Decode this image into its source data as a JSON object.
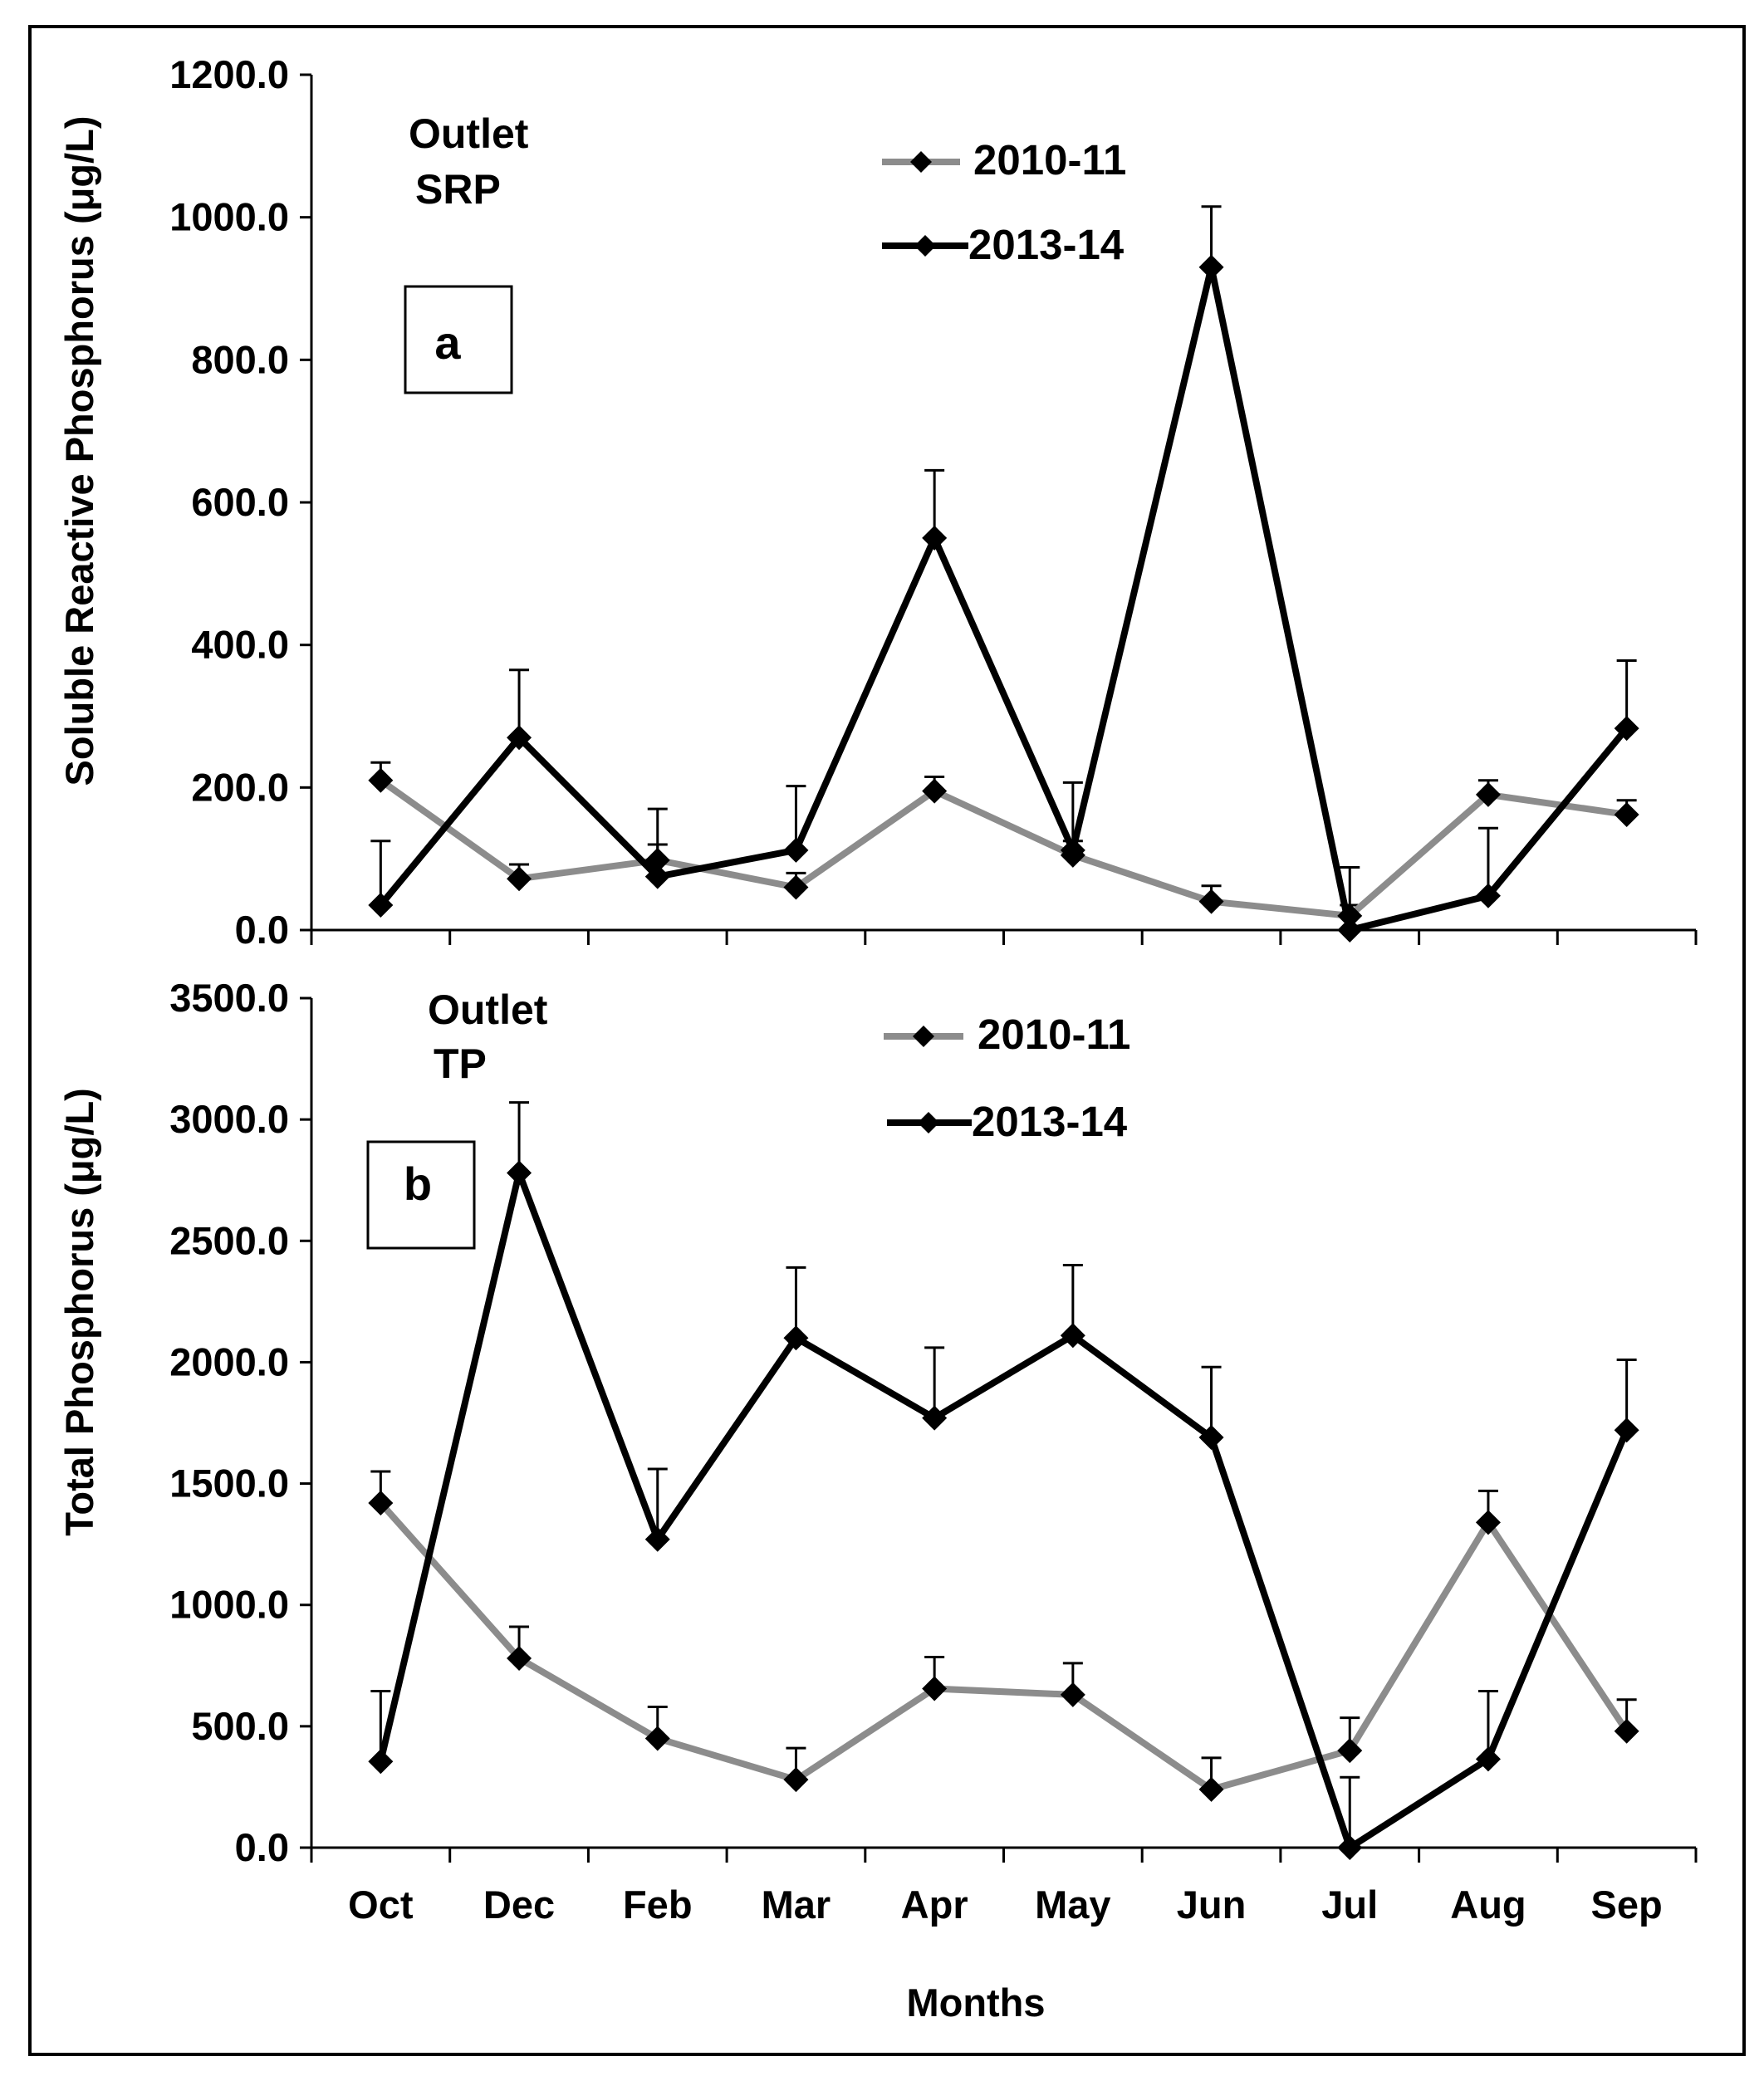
{
  "colors": {
    "series_2010": "#8c8c8c",
    "series_2013": "#000000",
    "axes": "#000000"
  },
  "xlabel": "Months",
  "chart_data": [
    {
      "type": "line",
      "panel_label": "a",
      "annotation": [
        "Outlet",
        "SRP"
      ],
      "ylabel": "Soluble Reactive Phosphorus (μg/L)",
      "ylim": [
        0,
        1200
      ],
      "yticks": [
        "0.0",
        "200.0",
        "400.0",
        "600.0",
        "800.0",
        "1000.0",
        "1200.0"
      ],
      "categories": [
        "Oct",
        "Dec",
        "Feb",
        "Mar",
        "Apr",
        "May",
        "Jun",
        "Jul",
        "Aug",
        "Sep"
      ],
      "legend": [
        "2010-11",
        "2013-14"
      ],
      "series": [
        {
          "name": "2010-11",
          "values": [
            210,
            72,
            98,
            60,
            195,
            105,
            40,
            20,
            190,
            162
          ],
          "error_plus": [
            25,
            20,
            22,
            20,
            20,
            20,
            22,
            15,
            20,
            20
          ]
        },
        {
          "name": "2013-14",
          "values": [
            35,
            270,
            75,
            112,
            550,
            112,
            930,
            0,
            48,
            283
          ],
          "error_plus": [
            90,
            95,
            95,
            90,
            95,
            95,
            85,
            88,
            95,
            95
          ]
        }
      ]
    },
    {
      "type": "line",
      "panel_label": "b",
      "annotation": [
        "Outlet",
        "TP"
      ],
      "ylabel": "Total Phosphorus (μg/L)",
      "ylim": [
        0,
        3500
      ],
      "yticks": [
        "0.0",
        "500.0",
        "1000.0",
        "1500.0",
        "2000.0",
        "2500.0",
        "3000.0",
        "3500.0"
      ],
      "categories": [
        "Oct",
        "Dec",
        "Feb",
        "Mar",
        "Apr",
        "May",
        "Jun",
        "Jul",
        "Aug",
        "Sep"
      ],
      "legend": [
        "2010-11",
        "2013-14"
      ],
      "series": [
        {
          "name": "2010-11",
          "values": [
            1420,
            780,
            450,
            280,
            655,
            630,
            240,
            400,
            1340,
            480
          ],
          "error_plus": [
            130,
            130,
            130,
            130,
            130,
            130,
            130,
            135,
            130,
            130
          ]
        },
        {
          "name": "2013-14",
          "values": [
            355,
            2780,
            1270,
            2100,
            1770,
            2110,
            1690,
            0,
            365,
            1720
          ],
          "error_plus": [
            290,
            290,
            290,
            290,
            290,
            290,
            290,
            290,
            280,
            290
          ]
        }
      ]
    }
  ]
}
